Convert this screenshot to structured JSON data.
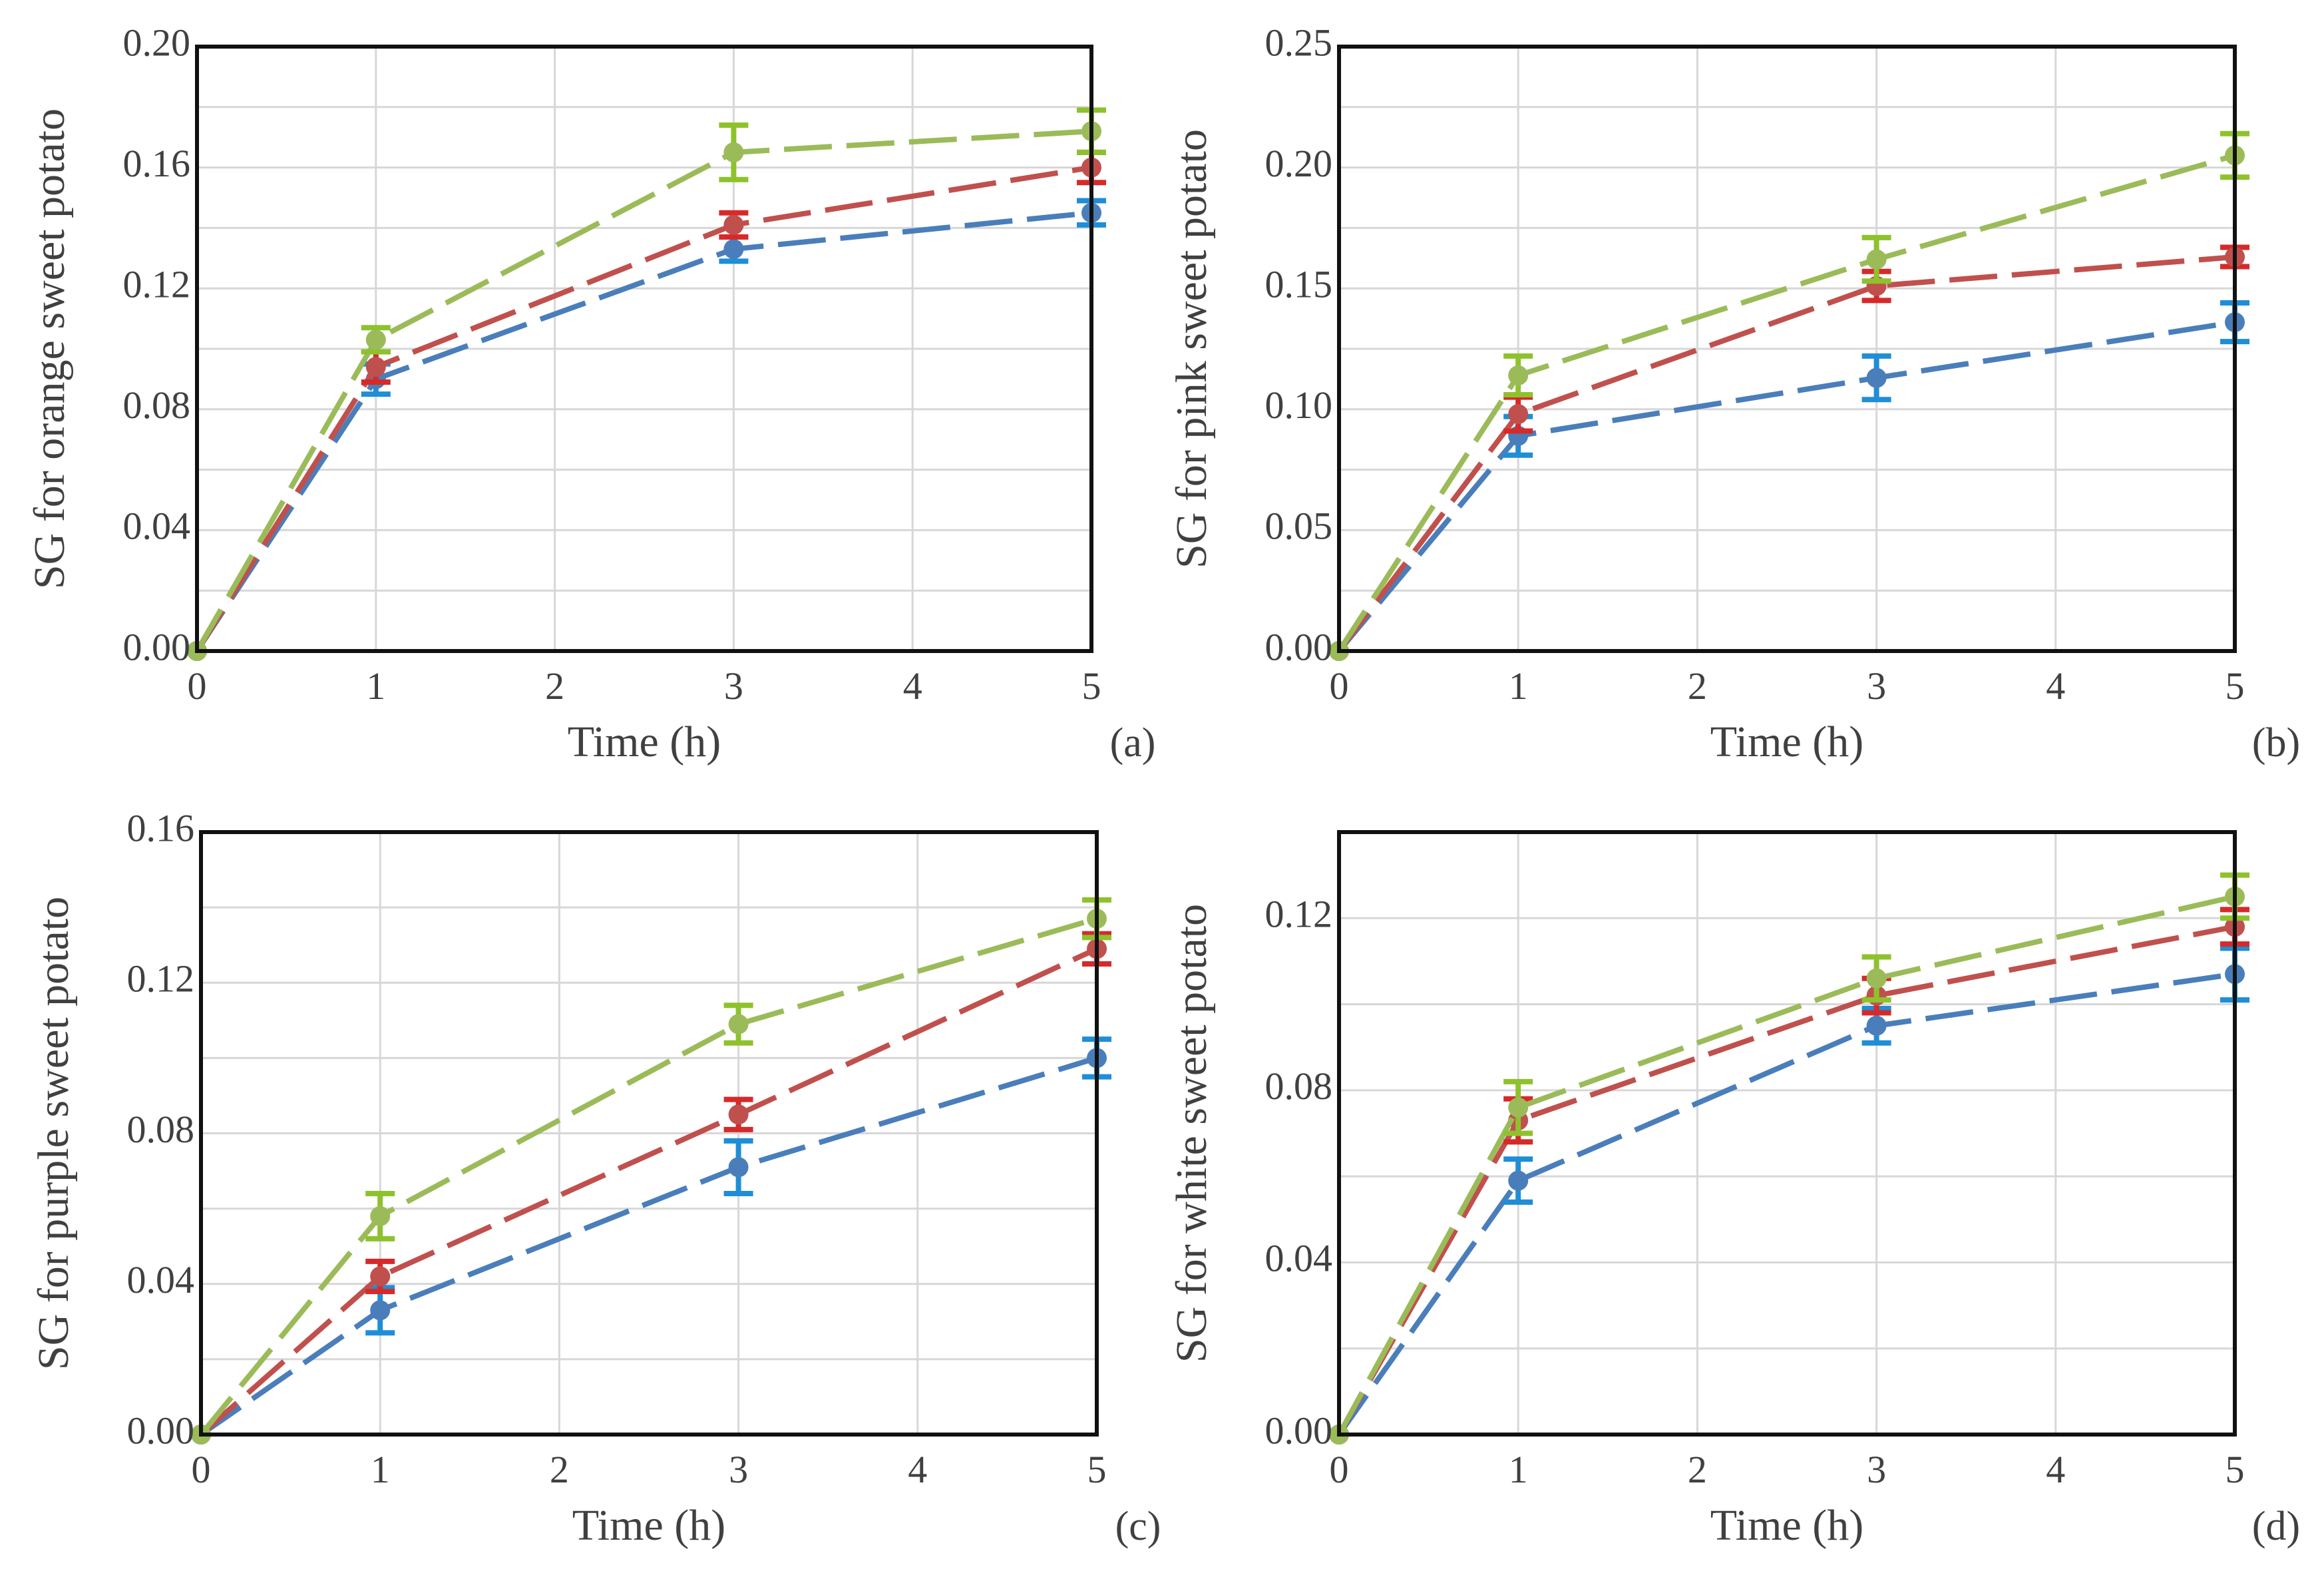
{
  "chart_data": [
    {
      "type": "line",
      "panel_label": "(a)",
      "xlabel": "Time (h)",
      "ylabel": "SG for orange sweet potato",
      "x": [
        0,
        1,
        3,
        5
      ],
      "xticks": [
        "0",
        "1",
        "2",
        "3",
        "4",
        "5"
      ],
      "xlim": [
        0,
        5
      ],
      "ylim": [
        0,
        0.2
      ],
      "yticks": [
        "0.00",
        "0.04",
        "0.08",
        "0.12",
        "0.16",
        "0.20"
      ],
      "grid": true,
      "series": [
        {
          "color": "#4a7ebb",
          "values": [
            0,
            0.09,
            0.133,
            0.145
          ],
          "errors": [
            0,
            0.005,
            0.004,
            0.004
          ]
        },
        {
          "color": "#c0504d",
          "values": [
            0,
            0.094,
            0.141,
            0.16
          ],
          "errors": [
            0,
            0.005,
            0.004,
            0.005
          ]
        },
        {
          "color": "#9bbb59",
          "values": [
            0,
            0.103,
            0.165,
            0.172
          ],
          "errors": [
            0,
            0.004,
            0.009,
            0.007
          ]
        }
      ]
    },
    {
      "type": "line",
      "panel_label": "(b)",
      "xlabel": "Time (h)",
      "ylabel": "SG for pink sweet potato",
      "x": [
        0,
        1,
        3,
        5
      ],
      "xticks": [
        "0",
        "1",
        "2",
        "3",
        "4",
        "5"
      ],
      "xlim": [
        0,
        5
      ],
      "ylim": [
        0,
        0.25
      ],
      "yticks": [
        "0.00",
        "0.05",
        "0.10",
        "0.15",
        "0.20",
        "0.25"
      ],
      "grid": true,
      "series": [
        {
          "color": "#4a7ebb",
          "values": [
            0,
            0.089,
            0.113,
            0.136
          ],
          "errors": [
            0,
            0.008,
            0.009,
            0.008
          ]
        },
        {
          "color": "#c0504d",
          "values": [
            0,
            0.098,
            0.151,
            0.163
          ],
          "errors": [
            0,
            0.007,
            0.006,
            0.004
          ]
        },
        {
          "color": "#9bbb59",
          "values": [
            0,
            0.114,
            0.162,
            0.205
          ],
          "errors": [
            0,
            0.008,
            0.009,
            0.009
          ]
        }
      ]
    },
    {
      "type": "line",
      "panel_label": "(c)",
      "xlabel": "Time (h)",
      "ylabel": "SG for purple sweet potato",
      "x": [
        0,
        1,
        3,
        5
      ],
      "xticks": [
        "0",
        "1",
        "2",
        "3",
        "4",
        "5"
      ],
      "xlim": [
        0,
        5
      ],
      "ylim": [
        0,
        0.16
      ],
      "yticks": [
        "0.00",
        "0.04",
        "0.08",
        "0.12",
        "0.16"
      ],
      "grid": true,
      "series": [
        {
          "color": "#4a7ebb",
          "values": [
            0,
            0.033,
            0.071,
            0.1
          ],
          "errors": [
            0,
            0.006,
            0.007,
            0.005
          ]
        },
        {
          "color": "#c0504d",
          "values": [
            0,
            0.042,
            0.085,
            0.129
          ],
          "errors": [
            0,
            0.004,
            0.004,
            0.004
          ]
        },
        {
          "color": "#9bbb59",
          "values": [
            0,
            0.058,
            0.109,
            0.137
          ],
          "errors": [
            0,
            0.006,
            0.005,
            0.005
          ]
        }
      ]
    },
    {
      "type": "line",
      "panel_label": "(d)",
      "xlabel": "Time (h)",
      "ylabel": "SG for white sweet potato",
      "x": [
        0,
        1,
        3,
        5
      ],
      "xticks": [
        "0",
        "1",
        "2",
        "3",
        "4",
        "5"
      ],
      "xlim": [
        0,
        5
      ],
      "ylim": [
        0,
        0.14
      ],
      "yticks": [
        "0.00",
        "0.04",
        "0.08",
        "0.12"
      ],
      "grid": true,
      "series": [
        {
          "color": "#4a7ebb",
          "values": [
            0,
            0.059,
            0.095,
            0.107
          ],
          "errors": [
            0,
            0.005,
            0.004,
            0.006
          ]
        },
        {
          "color": "#c0504d",
          "values": [
            0,
            0.073,
            0.102,
            0.118
          ],
          "errors": [
            0,
            0.005,
            0.004,
            0.004
          ]
        },
        {
          "color": "#9bbb59",
          "values": [
            0,
            0.076,
            0.106,
            0.125
          ],
          "errors": [
            0,
            0.006,
            0.005,
            0.005
          ]
        }
      ]
    }
  ]
}
